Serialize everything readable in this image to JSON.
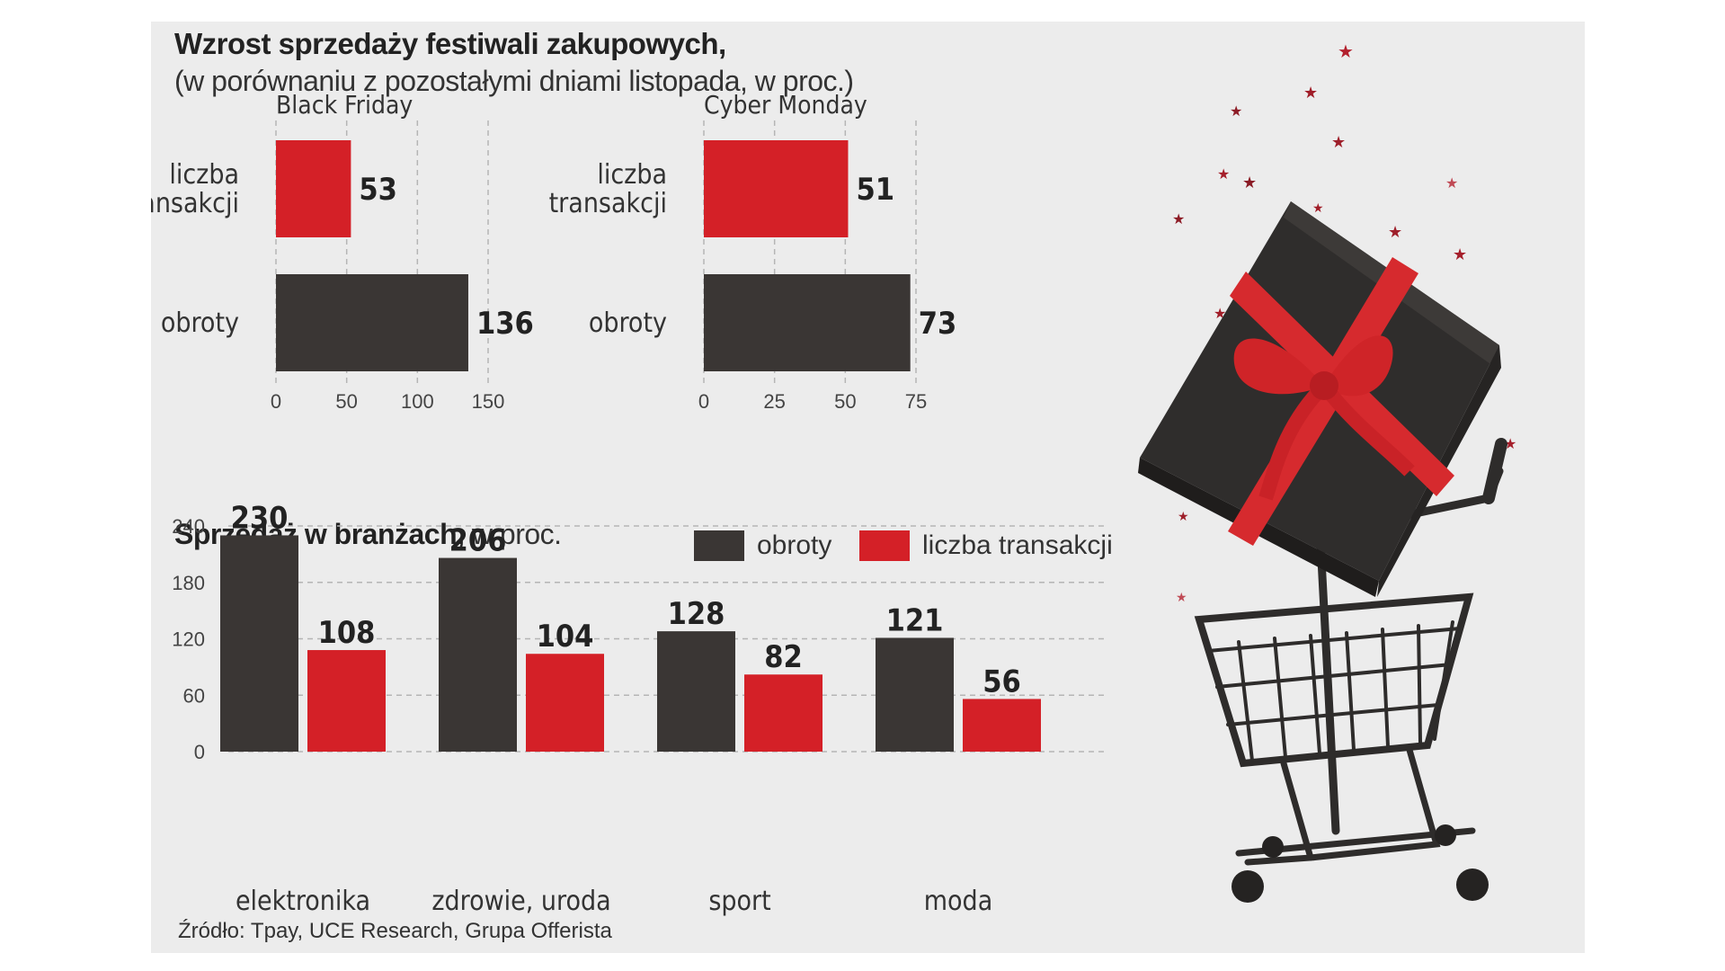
{
  "title": "Wzrost sprzedaży festiwali zakupowych,",
  "subtitle": "(w porównaniu z pozostałymi dniami listopada, w proc.)",
  "section_title_bold": "Sprzedaż w branżach,",
  "section_title_rest": " w proc.",
  "source": "Źródło: Tpay, UCE Research, Grupa Offerista",
  "legend": [
    {
      "label": "obroty",
      "color": "#3a3634"
    },
    {
      "label": "liczba transakcji",
      "color": "#d42027"
    }
  ],
  "colors": {
    "obroty": "#3a3634",
    "liczba_transakcji": "#d42027",
    "background": "#ececec"
  },
  "chart_data": [
    {
      "type": "bar",
      "orientation": "horizontal",
      "title": "Black Friday",
      "categories": [
        "liczba transakcji",
        "obroty"
      ],
      "category_labels": [
        [
          "liczba",
          "transakcji"
        ],
        [
          "obroty"
        ]
      ],
      "values": [
        53,
        136
      ],
      "xlim": [
        0,
        150
      ],
      "ticks": [
        0,
        50,
        100,
        150
      ],
      "grid": true
    },
    {
      "type": "bar",
      "orientation": "horizontal",
      "title": "Cyber Monday",
      "categories": [
        "liczba transakcji",
        "obroty"
      ],
      "category_labels": [
        [
          "liczba",
          "transakcji"
        ],
        [
          "obroty"
        ]
      ],
      "values": [
        51,
        73
      ],
      "xlim": [
        0,
        75
      ],
      "ticks": [
        0,
        25,
        50,
        75
      ],
      "grid": true
    },
    {
      "type": "bar",
      "orientation": "vertical",
      "categories": [
        "elektronika",
        "zdrowie, uroda",
        "sport",
        "moda"
      ],
      "series": [
        {
          "name": "obroty",
          "values": [
            230,
            206,
            128,
            121
          ]
        },
        {
          "name": "liczba transakcji",
          "values": [
            108,
            104,
            82,
            56
          ]
        }
      ],
      "ylim": [
        0,
        240
      ],
      "ticks": [
        0,
        60,
        120,
        180,
        240
      ],
      "grid": true,
      "legend_position": "top-right"
    }
  ]
}
